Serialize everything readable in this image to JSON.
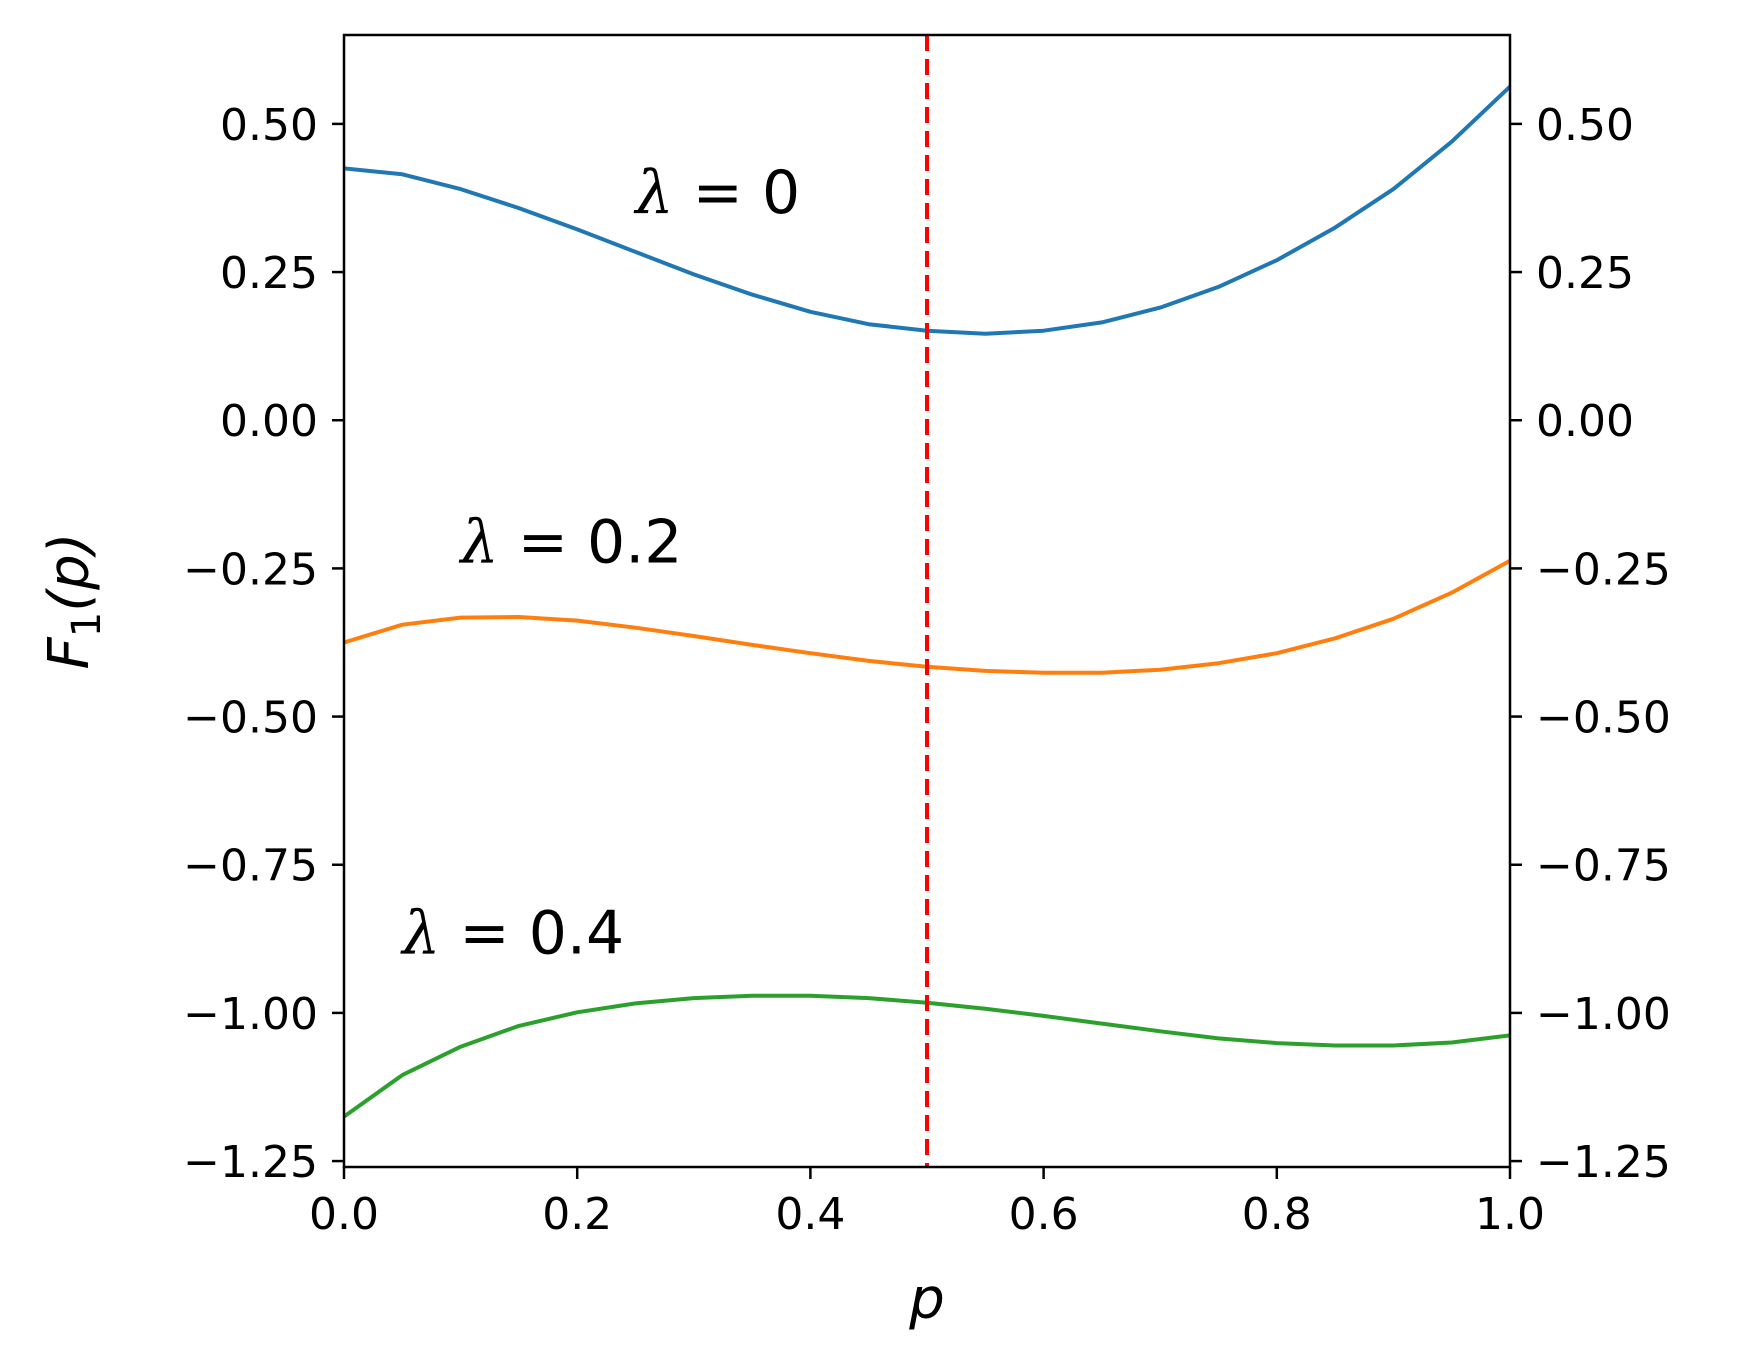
{
  "chart_data": {
    "type": "line",
    "xlabel": "p",
    "ylabel": "F1(p)",
    "ylabel_main": "F",
    "ylabel_sub": "1",
    "ylabel_arg": "(p)",
    "xlim": [
      0.0,
      1.0
    ],
    "ylim": [
      -1.26,
      0.65
    ],
    "xticks": [
      0.0,
      0.2,
      0.4,
      0.6,
      0.8,
      1.0
    ],
    "xtick_labels": [
      "0.0",
      "0.2",
      "0.4",
      "0.6",
      "0.8",
      "1.0"
    ],
    "yticks": [
      0.5,
      0.25,
      0.0,
      -0.25,
      -0.5,
      -0.75,
      -1.0,
      -1.25
    ],
    "ytick_labels": [
      "0.50",
      "0.25",
      "0.00",
      "−0.25",
      "−0.50",
      "−0.75",
      "−1.00",
      "−1.25"
    ],
    "right_axis_ticks": true,
    "grid": false,
    "x": [
      0.0,
      0.05,
      0.1,
      0.15,
      0.2,
      0.25,
      0.3,
      0.35,
      0.4,
      0.45,
      0.5,
      0.55,
      0.6,
      0.65,
      0.7,
      0.75,
      0.8,
      0.85,
      0.9,
      0.95,
      1.0
    ],
    "series": [
      {
        "color": "#1f77b4",
        "values": [
          0.425,
          0.415,
          0.39,
          0.358,
          0.322,
          0.284,
          0.246,
          0.212,
          0.183,
          0.162,
          0.151,
          0.146,
          0.151,
          0.165,
          0.19,
          0.225,
          0.27,
          0.325,
          0.39,
          0.47,
          0.563
        ]
      },
      {
        "color": "#ff7f0e",
        "values": [
          -0.375,
          -0.345,
          -0.333,
          -0.332,
          -0.338,
          -0.35,
          -0.364,
          -0.379,
          -0.393,
          -0.406,
          -0.416,
          -0.423,
          -0.426,
          -0.426,
          -0.421,
          -0.41,
          -0.393,
          -0.368,
          -0.335,
          -0.291,
          -0.237
        ]
      },
      {
        "color": "#2ca02c",
        "values": [
          -1.175,
          -1.105,
          -1.057,
          -1.022,
          -0.999,
          -0.984,
          -0.975,
          -0.971,
          -0.971,
          -0.975,
          -0.983,
          -0.993,
          -1.005,
          -1.018,
          -1.031,
          -1.043,
          -1.051,
          -1.055,
          -1.055,
          -1.05,
          -1.038
        ]
      }
    ],
    "vline": {
      "x": 0.5,
      "color": "#ff0000",
      "style": "dashed"
    },
    "annotations": [
      {
        "greek": "λ",
        "text": " = 0",
        "x": 0.25,
        "y": 0.35
      },
      {
        "greek": "λ",
        "text": " = 0.2",
        "x": 0.1,
        "y": -0.24
      },
      {
        "greek": "λ",
        "text": " = 0.4",
        "x": 0.05,
        "y": -0.9
      }
    ]
  }
}
